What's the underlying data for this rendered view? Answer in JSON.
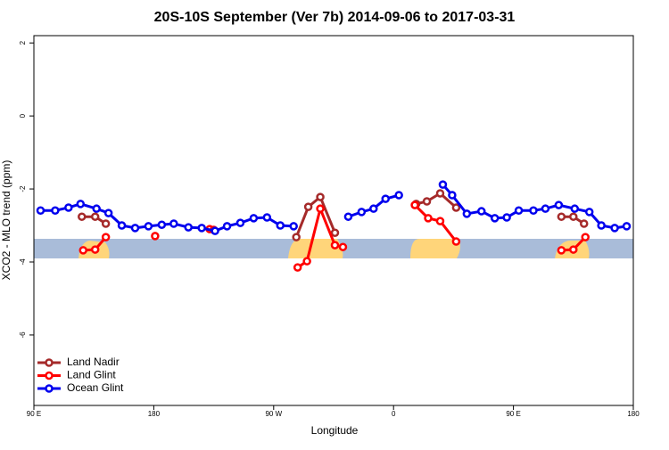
{
  "chart_data": {
    "type": "line",
    "title": "20S-10S September (Ver 7b)   2014-09-06 to 2017-03-31",
    "x_label": "Longitude",
    "y_label": "XCO2 - MLO trend (ppm)",
    "xlim": [
      90,
      540
    ],
    "xticks": [
      {
        "value": 90,
        "label": "90 E"
      },
      {
        "value": 180,
        "label": "180"
      },
      {
        "value": 270,
        "label": "90 W"
      },
      {
        "value": 360,
        "label": "0"
      },
      {
        "value": 450,
        "label": "90 E"
      },
      {
        "value": 540,
        "label": "180"
      }
    ],
    "ylim": [
      -7.93,
      2.2
    ],
    "yticks": [
      2,
      0,
      -2,
      -4,
      -6
    ],
    "legend": "bottomleft",
    "series": [
      {
        "name": "Land Nadir",
        "color": "#a52a2a",
        "x": [
          126,
          136,
          144,
          null,
          287,
          296,
          305,
          316,
          null,
          377,
          385,
          395,
          407,
          null,
          486,
          495,
          503
        ],
        "values": [
          -2.76,
          -2.76,
          -2.95,
          null,
          -3.32,
          -2.49,
          -2.22,
          -3.2,
          null,
          -2.41,
          -2.34,
          -2.12,
          -2.51,
          null,
          -2.76,
          -2.76,
          -2.95
        ]
      },
      {
        "name": "Land Glint",
        "color": "#ff0000",
        "x": [
          127,
          136,
          144,
          null,
          181,
          null,
          222,
          225,
          null,
          288,
          295,
          305,
          316,
          322,
          null,
          376,
          386,
          395,
          407,
          null,
          486,
          495,
          504
        ],
        "values": [
          -3.68,
          -3.66,
          -3.32,
          null,
          -3.29,
          null,
          -3.1,
          -3.12,
          null,
          -4.15,
          -3.98,
          -2.54,
          -3.54,
          -3.59,
          null,
          -2.44,
          -2.8,
          -2.88,
          -3.44,
          null,
          -3.68,
          -3.66,
          -3.32
        ]
      },
      {
        "name": "Ocean Glint",
        "color": "#0000ee",
        "x": [
          95,
          106,
          116,
          125,
          137,
          146,
          156,
          166,
          176,
          186,
          195,
          206,
          216,
          226,
          235,
          245,
          255,
          265,
          275,
          285,
          null,
          326,
          336,
          345,
          354,
          364,
          null,
          397,
          404,
          415,
          426,
          436,
          445,
          454,
          465,
          474,
          484,
          496,
          507,
          516,
          526,
          535
        ],
        "values": [
          -2.59,
          -2.59,
          -2.51,
          -2.41,
          -2.54,
          -2.66,
          -3.0,
          -3.07,
          -3.02,
          -2.98,
          -2.95,
          -3.05,
          -3.07,
          -3.15,
          -3.02,
          -2.93,
          -2.8,
          -2.78,
          -3.0,
          -3.02,
          null,
          -2.76,
          -2.63,
          -2.54,
          -2.27,
          -2.17,
          null,
          -1.88,
          -2.17,
          -2.68,
          -2.61,
          -2.8,
          -2.78,
          -2.59,
          -2.59,
          -2.54,
          -2.44,
          -2.54,
          -2.63,
          -3.0,
          -3.07,
          -3.02
        ]
      }
    ]
  }
}
